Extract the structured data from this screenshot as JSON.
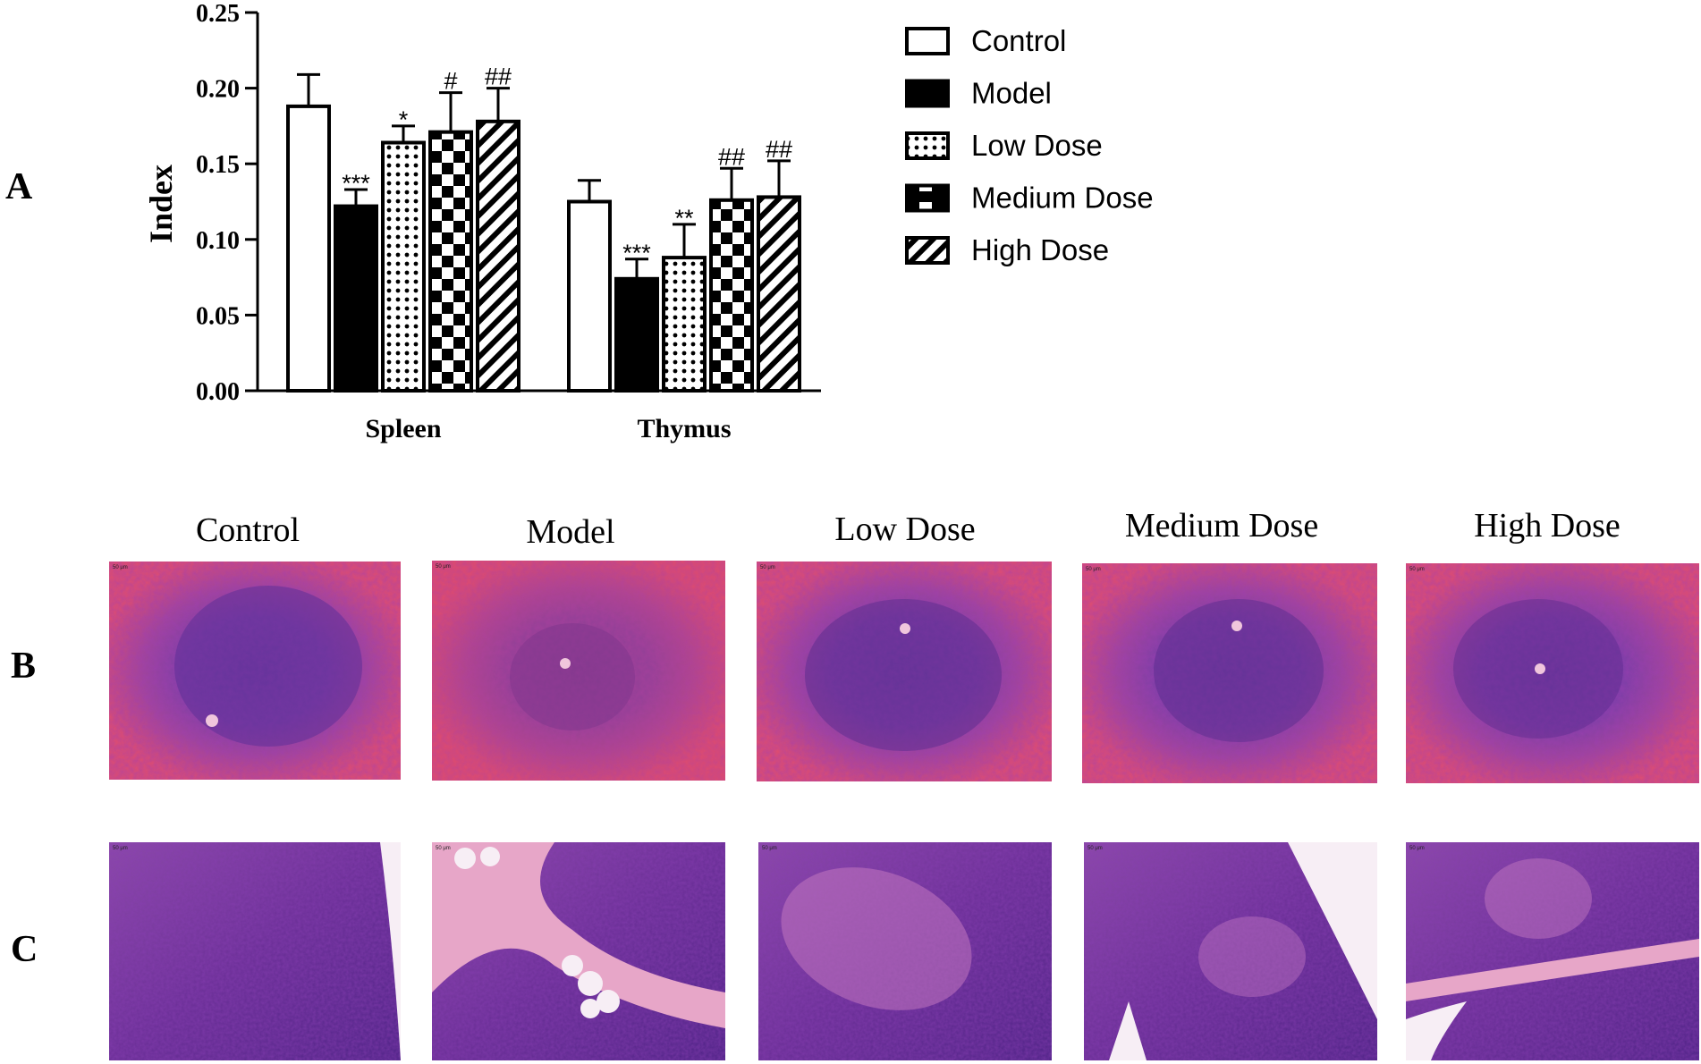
{
  "panels": {
    "a": "A",
    "b": "B",
    "c": "C"
  },
  "chart_data": {
    "type": "bar",
    "title": "",
    "xlabel": "",
    "ylabel": "Index",
    "ylim": [
      0,
      0.25
    ],
    "yticks": [
      "0.00",
      "0.05",
      "0.10",
      "0.15",
      "0.20",
      "0.25"
    ],
    "categories": [
      "Spleen",
      "Thymus"
    ],
    "legend_position": "right",
    "series": [
      {
        "name": "Control",
        "pattern": "open",
        "values": [
          0.188,
          0.125
        ],
        "errors": [
          0.021,
          0.014
        ],
        "annotations": [
          "",
          ""
        ]
      },
      {
        "name": "Model",
        "pattern": "solid",
        "values": [
          0.122,
          0.074
        ],
        "errors": [
          0.011,
          0.013
        ],
        "annotations": [
          "***",
          "***"
        ]
      },
      {
        "name": "Low Dose",
        "pattern": "dots",
        "values": [
          0.164,
          0.088
        ],
        "errors": [
          0.011,
          0.022
        ],
        "annotations": [
          "*",
          "**"
        ]
      },
      {
        "name": "Medium Dose",
        "pattern": "checker",
        "values": [
          0.171,
          0.126
        ],
        "errors": [
          0.026,
          0.021
        ],
        "annotations": [
          "#",
          "##"
        ]
      },
      {
        "name": "High Dose",
        "pattern": "diagonal",
        "values": [
          0.178,
          0.128
        ],
        "errors": [
          0.022,
          0.024
        ],
        "annotations": [
          "##",
          "##"
        ]
      }
    ]
  },
  "micrographs": {
    "columns": [
      "Control",
      "Model",
      "Low Dose",
      "Medium Dose",
      "High Dose"
    ],
    "scale_label": "50 μm"
  },
  "colors": {
    "spleen_pink": "#e0506e",
    "spleen_purple": "#8a3ea0",
    "spleen_dark": "#5a2b8e",
    "thymus_purple": "#7a3a9e",
    "thymus_dark": "#4d2385",
    "thymus_light": "#c276c0",
    "fat_white": "#f7eef5"
  }
}
